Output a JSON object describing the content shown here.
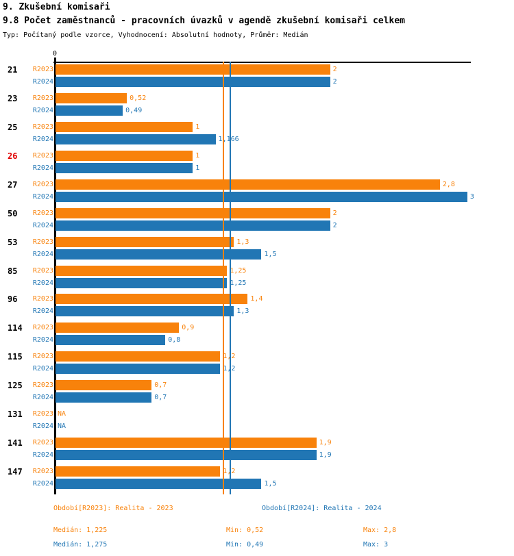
{
  "header": {
    "title": "9. Zkušební komisaři",
    "subtitle": "9.8 Počet zaměstnanců - pracovních úvazků v agendě zkušební komisaři celkem",
    "meta": "Typ: Počítaný podle vzorce, Vyhodnocení: Absolutní hodnoty, Průměr: Medián"
  },
  "colors": {
    "r2023_orange": "#f8820b",
    "r2024_blue": "#2176b4",
    "highlight_red": "#e00000",
    "axis_black": "#000000"
  },
  "chart_data": {
    "type": "bar",
    "orientation": "horizontal",
    "title": "9.8 Počet zaměstnanců - pracovních úvazků v agendě zkušební komisaři celkem",
    "xlim": [
      0,
      3
    ],
    "axis": {
      "zero_label": "0"
    },
    "categories": [
      "21",
      "23",
      "25",
      "26",
      "27",
      "50",
      "53",
      "85",
      "96",
      "114",
      "115",
      "125",
      "131",
      "141",
      "147"
    ],
    "highlight_category": "26",
    "series": [
      {
        "name": "R2023",
        "color": "#f8820b",
        "values": [
          2,
          0.52,
          1,
          1,
          2.8,
          2,
          1.3,
          1.25,
          1.4,
          0.9,
          1.2,
          0.7,
          null,
          1.9,
          1.2
        ],
        "labels": [
          "2",
          "0,52",
          "1",
          "1",
          "2,8",
          "2",
          "1,3",
          "1,25",
          "1,4",
          "0,9",
          "1,2",
          "0,7",
          "NA",
          "1,9",
          "1,2"
        ],
        "median": 1.225,
        "median_label": "1,225"
      },
      {
        "name": "R2024",
        "color": "#2176b4",
        "values": [
          2,
          0.49,
          1.166,
          1,
          3,
          2,
          1.5,
          1.25,
          1.3,
          0.8,
          1.2,
          0.7,
          null,
          1.9,
          1.5
        ],
        "labels": [
          "2",
          "0,49",
          "1,166",
          "1",
          "3",
          "2",
          "1,5",
          "1,25",
          "1,3",
          "0,8",
          "1,2",
          "0,7",
          "NA",
          "1,9",
          "1,5"
        ],
        "median": 1.275,
        "median_label": "1,275"
      }
    ]
  },
  "legend": {
    "r2023": {
      "period": "Období[R2023]: Realita - 2023",
      "median": "Medián: 1,225",
      "min": "Min: 0,52",
      "max": "Max: 2,8"
    },
    "r2024": {
      "period": "Období[R2024]: Realita - 2024",
      "median": "Medián: 1,275",
      "min": "Min: 0,49",
      "max": "Max: 3"
    }
  }
}
